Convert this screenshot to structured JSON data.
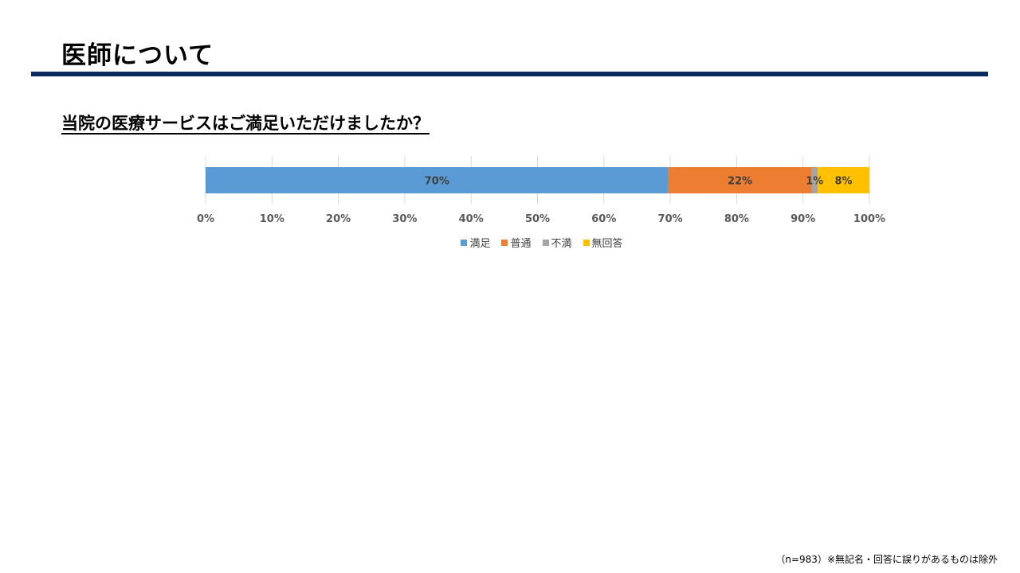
{
  "slide": {
    "title": "医師について",
    "question": "当院の医療サービスはご満足いただけましたか？",
    "footnote": "（n=983）※無記名・回答に誤りがあるものは除外",
    "accent_color": "#0d2a5c"
  },
  "chart_data": {
    "type": "bar",
    "orientation": "horizontal-stacked-100",
    "categories": [
      ""
    ],
    "series": [
      {
        "name": "満足",
        "values": [
          69.7
        ],
        "label": "70%",
        "color": "#5b9bd5"
      },
      {
        "name": "普通",
        "values": [
          21.6
        ],
        "label": "22%",
        "color": "#ed7d31"
      },
      {
        "name": "不満",
        "values": [
          0.9
        ],
        "label": "1%",
        "color": "#a5a5a5"
      },
      {
        "name": "無回答",
        "values": [
          7.8
        ],
        "label": "8%",
        "color": "#ffc000"
      }
    ],
    "xlim": [
      0,
      100
    ],
    "xticks": [
      "0%",
      "10%",
      "20%",
      "30%",
      "40%",
      "50%",
      "60%",
      "70%",
      "80%",
      "90%",
      "100%"
    ],
    "grid": true,
    "legend_position": "bottom"
  }
}
